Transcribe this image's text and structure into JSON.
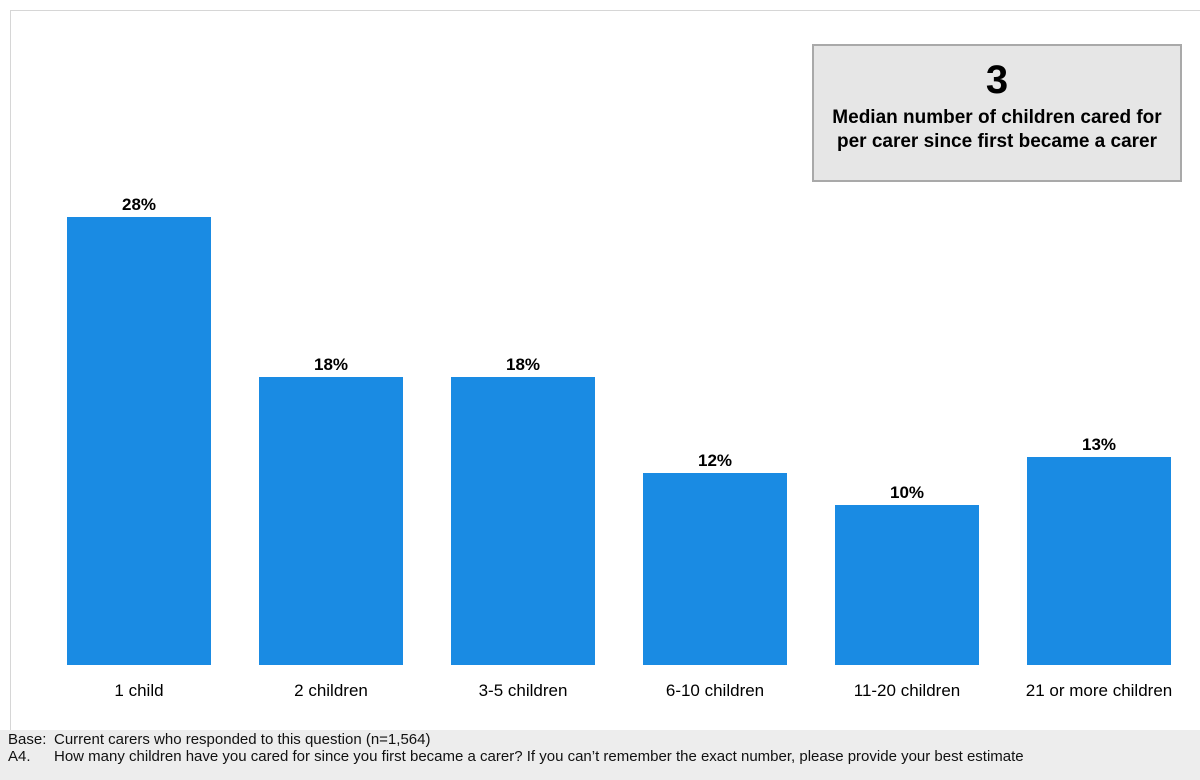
{
  "chart_data": {
    "type": "bar",
    "categories": [
      "1 child",
      "2 children",
      "3-5 children",
      "6-10 children",
      "11-20 children",
      "21 or more children"
    ],
    "values": [
      28,
      18,
      18,
      12,
      10,
      13
    ],
    "value_labels": [
      "28%",
      "18%",
      "18%",
      "12%",
      "10%",
      "13%"
    ],
    "unit": "%",
    "bar_color": "#1a8be3",
    "title": "",
    "xlabel": "",
    "ylabel": "",
    "grid": false,
    "legend": "none"
  },
  "callout": {
    "value": "3",
    "text": "Median number of children cared for per carer since first became a carer"
  },
  "footer": {
    "base_key": "Base:",
    "base_text": "Current carers who responded to this question (n=1,564)",
    "question_key": "A4.",
    "question_text": "How many children have you cared for since you first became a carer? If you can’t remember the exact number, please provide your best estimate"
  }
}
